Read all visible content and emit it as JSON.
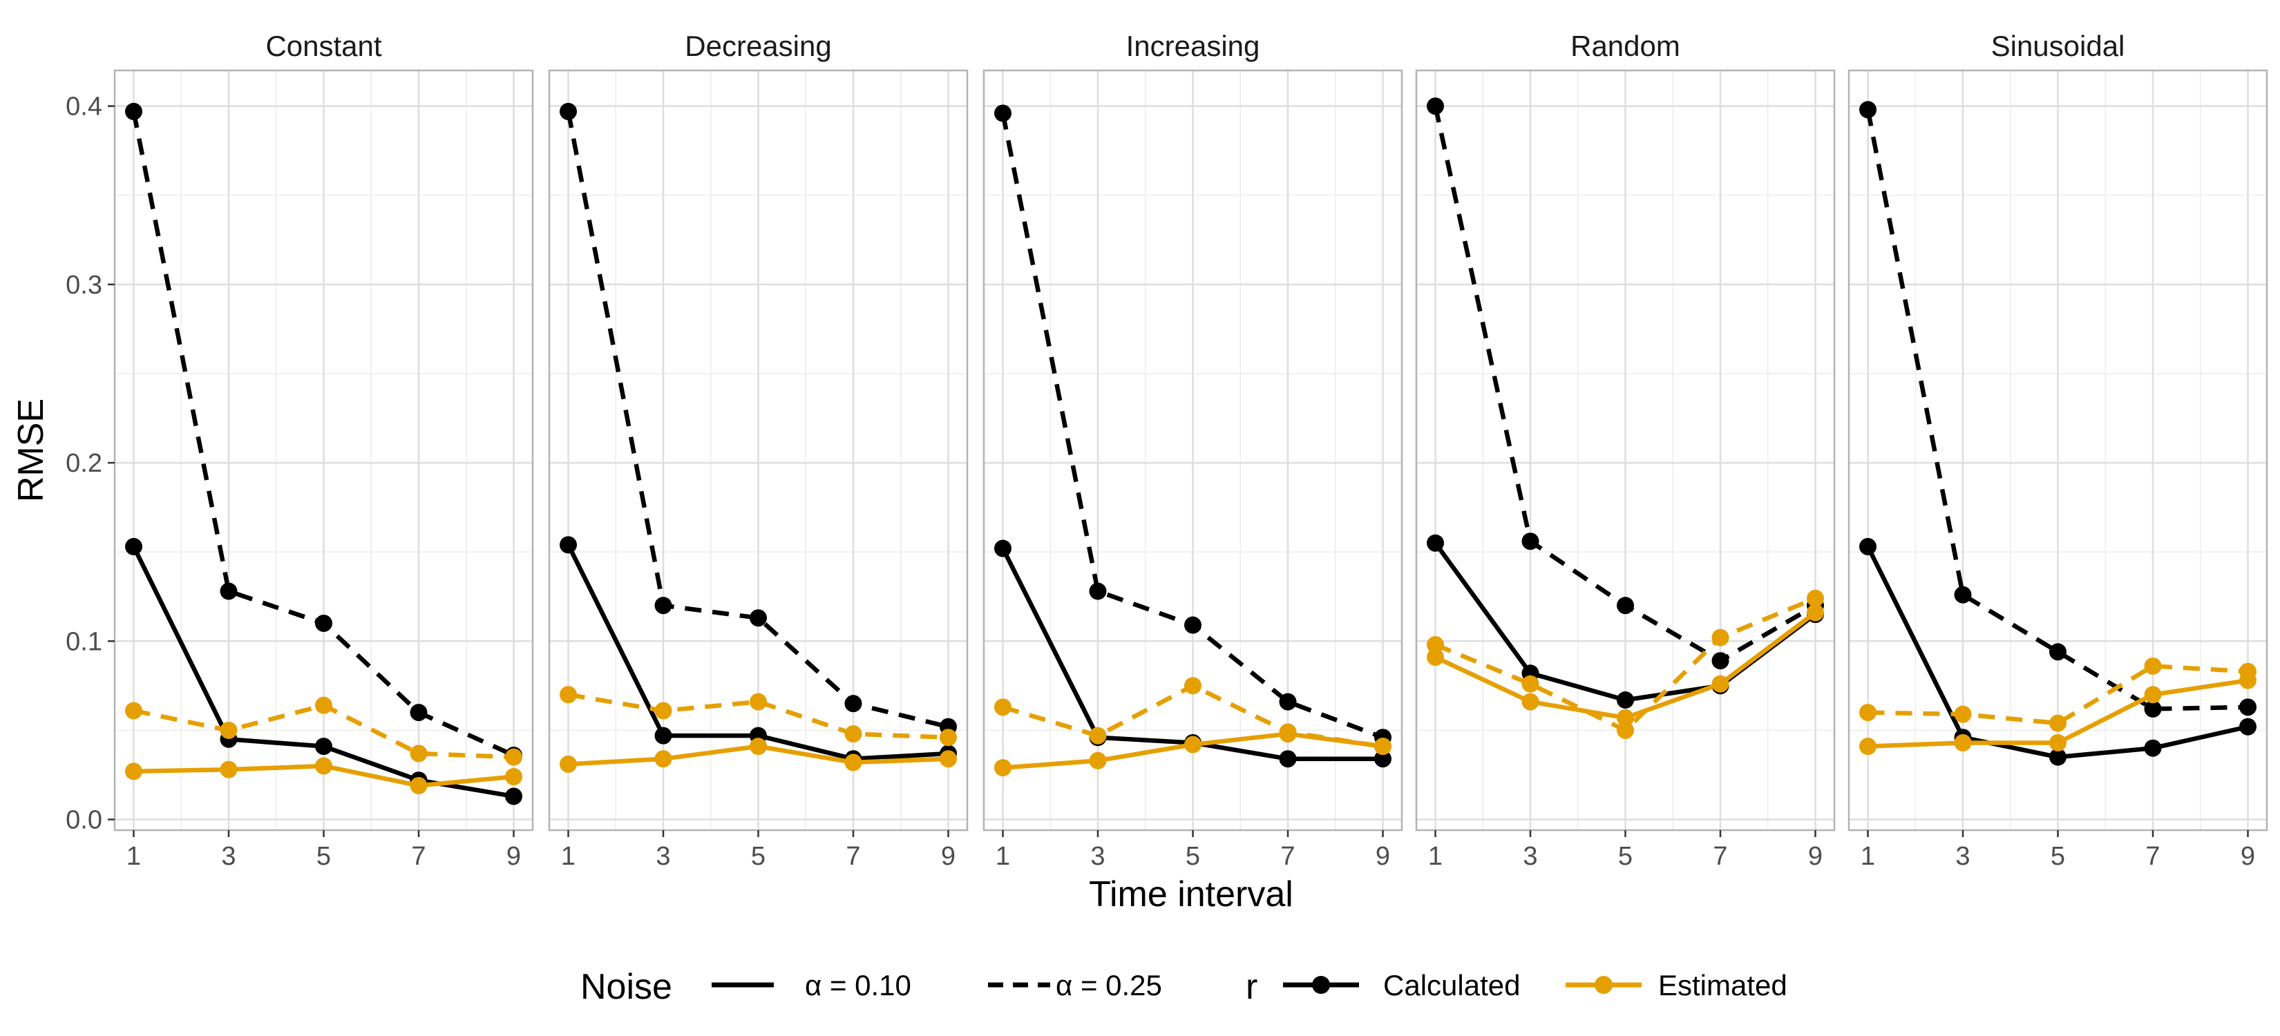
{
  "chart_data": {
    "type": "line",
    "facet_labels": [
      "Constant",
      "Decreasing",
      "Increasing",
      "Random",
      "Sinusoidal"
    ],
    "xlabel": "Time interval",
    "ylabel": "RMSE",
    "x": [
      1,
      3,
      5,
      7,
      9
    ],
    "xticks": [
      "1",
      "3",
      "5",
      "7",
      "9"
    ],
    "ylim": [
      -0.006,
      0.42
    ],
    "yticks": [
      "0.0",
      "0.1",
      "0.2",
      "0.3",
      "0.4"
    ],
    "grid": true,
    "colors": {
      "Calculated": "#000000",
      "Estimated": "#E69F00"
    },
    "legend": {
      "position": "bottom",
      "linetype_title": "Noise",
      "linetype_entries": [
        "α =  0.10",
        "α =  0.25"
      ],
      "color_title": "r",
      "color_entries": [
        "Calculated",
        "Estimated"
      ]
    },
    "panels": [
      {
        "name": "Constant",
        "series": [
          {
            "r": "Calculated",
            "noise": "0.10",
            "values": [
              0.153,
              0.045,
              0.041,
              0.022,
              0.013
            ]
          },
          {
            "r": "Calculated",
            "noise": "0.25",
            "values": [
              0.397,
              0.128,
              0.11,
              0.06,
              0.036
            ]
          },
          {
            "r": "Estimated",
            "noise": "0.10",
            "values": [
              0.027,
              0.028,
              0.03,
              0.019,
              0.024
            ]
          },
          {
            "r": "Estimated",
            "noise": "0.25",
            "values": [
              0.061,
              0.05,
              0.064,
              0.037,
              0.035
            ]
          }
        ]
      },
      {
        "name": "Decreasing",
        "series": [
          {
            "r": "Calculated",
            "noise": "0.10",
            "values": [
              0.154,
              0.047,
              0.047,
              0.034,
              0.037
            ]
          },
          {
            "r": "Calculated",
            "noise": "0.25",
            "values": [
              0.397,
              0.12,
              0.113,
              0.065,
              0.052
            ]
          },
          {
            "r": "Estimated",
            "noise": "0.10",
            "values": [
              0.031,
              0.034,
              0.041,
              0.032,
              0.034
            ]
          },
          {
            "r": "Estimated",
            "noise": "0.25",
            "values": [
              0.07,
              0.061,
              0.066,
              0.048,
              0.046
            ]
          }
        ]
      },
      {
        "name": "Increasing",
        "series": [
          {
            "r": "Calculated",
            "noise": "0.10",
            "values": [
              0.152,
              0.046,
              0.043,
              0.034,
              0.034
            ]
          },
          {
            "r": "Calculated",
            "noise": "0.25",
            "values": [
              0.396,
              0.128,
              0.109,
              0.066,
              0.046
            ]
          },
          {
            "r": "Estimated",
            "noise": "0.10",
            "values": [
              0.029,
              0.033,
              0.042,
              0.048,
              0.041
            ]
          },
          {
            "r": "Estimated",
            "noise": "0.25",
            "values": [
              0.063,
              0.047,
              0.075,
              0.049,
              0.041
            ]
          }
        ]
      },
      {
        "name": "Random",
        "series": [
          {
            "r": "Calculated",
            "noise": "0.10",
            "values": [
              0.155,
              0.082,
              0.067,
              0.075,
              0.115
            ]
          },
          {
            "r": "Calculated",
            "noise": "0.25",
            "values": [
              0.4,
              0.156,
              0.12,
              0.089,
              0.12
            ]
          },
          {
            "r": "Estimated",
            "noise": "0.10",
            "values": [
              0.091,
              0.066,
              0.057,
              0.076,
              0.116
            ]
          },
          {
            "r": "Estimated",
            "noise": "0.25",
            "values": [
              0.098,
              0.076,
              0.05,
              0.102,
              0.124
            ]
          }
        ]
      },
      {
        "name": "Sinusoidal",
        "series": [
          {
            "r": "Calculated",
            "noise": "0.10",
            "values": [
              0.153,
              0.046,
              0.035,
              0.04,
              0.052
            ]
          },
          {
            "r": "Calculated",
            "noise": "0.25",
            "values": [
              0.398,
              0.126,
              0.094,
              0.062,
              0.063
            ]
          },
          {
            "r": "Estimated",
            "noise": "0.10",
            "values": [
              0.041,
              0.043,
              0.043,
              0.07,
              0.078
            ]
          },
          {
            "r": "Estimated",
            "noise": "0.25",
            "values": [
              0.06,
              0.059,
              0.054,
              0.086,
              0.083
            ]
          }
        ]
      }
    ]
  }
}
